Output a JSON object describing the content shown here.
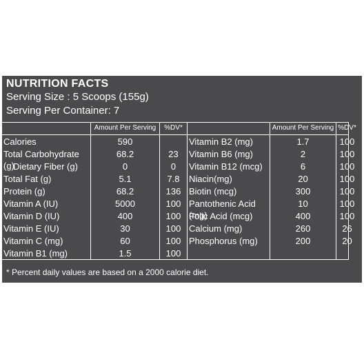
{
  "title": "NUTRITION FACTS",
  "serving_size": "Serving Size : 5 Scoops (155g)",
  "servings_per_container": "Serving Per Container: 7",
  "headers": {
    "amount": "Amount Per Serving",
    "dv": "%DV*"
  },
  "left_rows": [
    {
      "name": "Calories",
      "amount": "590",
      "dv": ""
    },
    {
      "name": "Total Carbohydrate (g)",
      "amount": "68.2",
      "dv": "23"
    },
    {
      "name": "Dietary Fiber (g)",
      "amount": "0",
      "dv": "0"
    },
    {
      "name": "Total Fat (g)",
      "amount": "5.1",
      "dv": "7.8"
    },
    {
      "name": "Protein (g)",
      "amount": "68.2",
      "dv": "136"
    },
    {
      "name": "Vitamin A (IU)",
      "amount": "5000",
      "dv": "100"
    },
    {
      "name": "Vitamin D (IU)",
      "amount": "400",
      "dv": "100"
    },
    {
      "name": "Vitamin E (IU)",
      "amount": "30",
      "dv": "100"
    },
    {
      "name": "Vitamin C (mg)",
      "amount": "60",
      "dv": "100"
    },
    {
      "name": "Vitamin B1 (mg)",
      "amount": "1.5",
      "dv": "100"
    }
  ],
  "right_rows": [
    {
      "name": "Vitamin B2 (mg)",
      "amount": "1.7",
      "dv": "100"
    },
    {
      "name": "Vitamin B6 (mg)",
      "amount": "2",
      "dv": "100"
    },
    {
      "name": "Vitamin B12 (mcg)",
      "amount": "6",
      "dv": "100"
    },
    {
      "name": "Niacin(mg)",
      "amount": "20",
      "dv": "100"
    },
    {
      "name": "Biotin (mcg)",
      "amount": "300",
      "dv": "100"
    },
    {
      "name": "Pantothenic Acid (mg)",
      "amount": "10",
      "dv": "100"
    },
    {
      "name": "Folic Acid (mcg)",
      "amount": "400",
      "dv": "100"
    },
    {
      "name": "Calcium (mg)",
      "amount": "260",
      "dv": "26"
    },
    {
      "name": "Phosphorus (mg)",
      "amount": "200",
      "dv": "20"
    }
  ],
  "footnote": "* Percent daily values are based on a 2000 calorie diet."
}
